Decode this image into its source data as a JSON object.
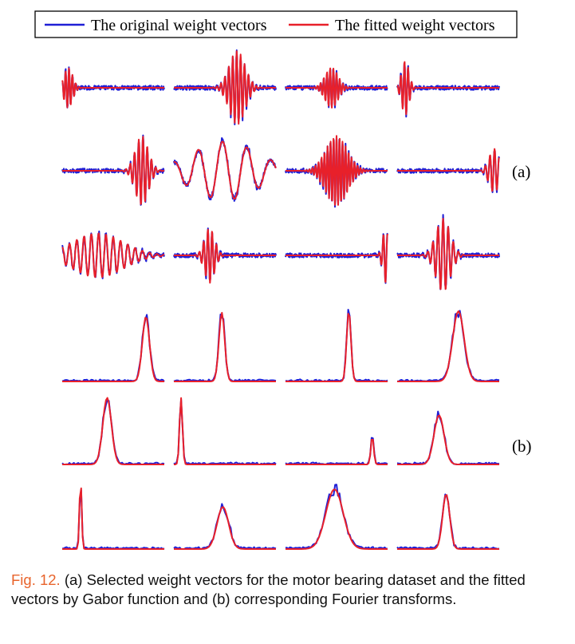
{
  "legend": {
    "original_label": "The original weight vectors",
    "fitted_label": "The fitted weight vectors",
    "original_color": "#1f1fd6",
    "fitted_color": "#e8202a"
  },
  "panel_labels": {
    "a": "(a)",
    "b": "(b)"
  },
  "caption": {
    "figure_number": "Fig. 12.",
    "text": "(a) Selected weight vectors for the motor bearing dataset and the fitted vectors by Gabor function and (b) corresponding Fourier transforms."
  },
  "grid": {
    "rows_a": 3,
    "rows_b": 3,
    "cols": 4,
    "panel_a_plots": [
      {
        "envelope_center": 0.06,
        "envelope_width": 0.12,
        "cycles": 30,
        "amplitude": 0.55
      },
      {
        "envelope_center": 0.62,
        "envelope_width": 0.22,
        "cycles": 26,
        "amplitude": 1.0
      },
      {
        "envelope_center": 0.45,
        "envelope_width": 0.18,
        "cycles": 32,
        "amplitude": 0.55
      },
      {
        "envelope_center": 0.08,
        "envelope_width": 0.1,
        "cycles": 28,
        "amplitude": 0.75
      },
      {
        "envelope_center": 0.78,
        "envelope_width": 0.18,
        "cycles": 24,
        "amplitude": 0.95
      },
      {
        "envelope_center": 0.5,
        "envelope_width": 0.9,
        "cycles": 4.2,
        "amplitude": 0.8
      },
      {
        "envelope_center": 0.5,
        "envelope_width": 0.3,
        "cycles": 34,
        "amplitude": 0.95
      },
      {
        "envelope_center": 0.95,
        "envelope_width": 0.14,
        "cycles": 22,
        "amplitude": 0.6
      },
      {
        "envelope_center": 0.35,
        "envelope_width": 0.7,
        "cycles": 14,
        "amplitude": 0.6
      },
      {
        "envelope_center": 0.35,
        "envelope_width": 0.14,
        "cycles": 24,
        "amplitude": 0.75
      },
      {
        "envelope_center": 0.98,
        "envelope_width": 0.08,
        "cycles": 24,
        "amplitude": 0.75
      },
      {
        "envelope_center": 0.45,
        "envelope_width": 0.2,
        "cycles": 20,
        "amplitude": 1.0
      }
    ],
    "panel_b_plots": [
      {
        "peak": 0.82,
        "width": 0.05,
        "height": 0.92
      },
      {
        "peak": 0.47,
        "width": 0.04,
        "height": 0.98
      },
      {
        "peak": 0.62,
        "width": 0.03,
        "height": 1.0
      },
      {
        "peak": 0.6,
        "width": 0.08,
        "height": 1.0
      },
      {
        "peak": 0.44,
        "width": 0.06,
        "height": 0.95
      },
      {
        "peak": 0.07,
        "width": 0.02,
        "height": 0.95
      },
      {
        "peak": 0.85,
        "width": 0.02,
        "height": 0.4
      },
      {
        "peak": 0.41,
        "width": 0.07,
        "height": 0.7
      },
      {
        "peak": 0.18,
        "width": 0.015,
        "height": 1.0
      },
      {
        "peak": 0.48,
        "width": 0.08,
        "height": 0.6
      },
      {
        "peak": 0.48,
        "width": 0.12,
        "height": 0.85
      },
      {
        "peak": 0.48,
        "width": 0.05,
        "height": 0.78
      }
    ]
  }
}
